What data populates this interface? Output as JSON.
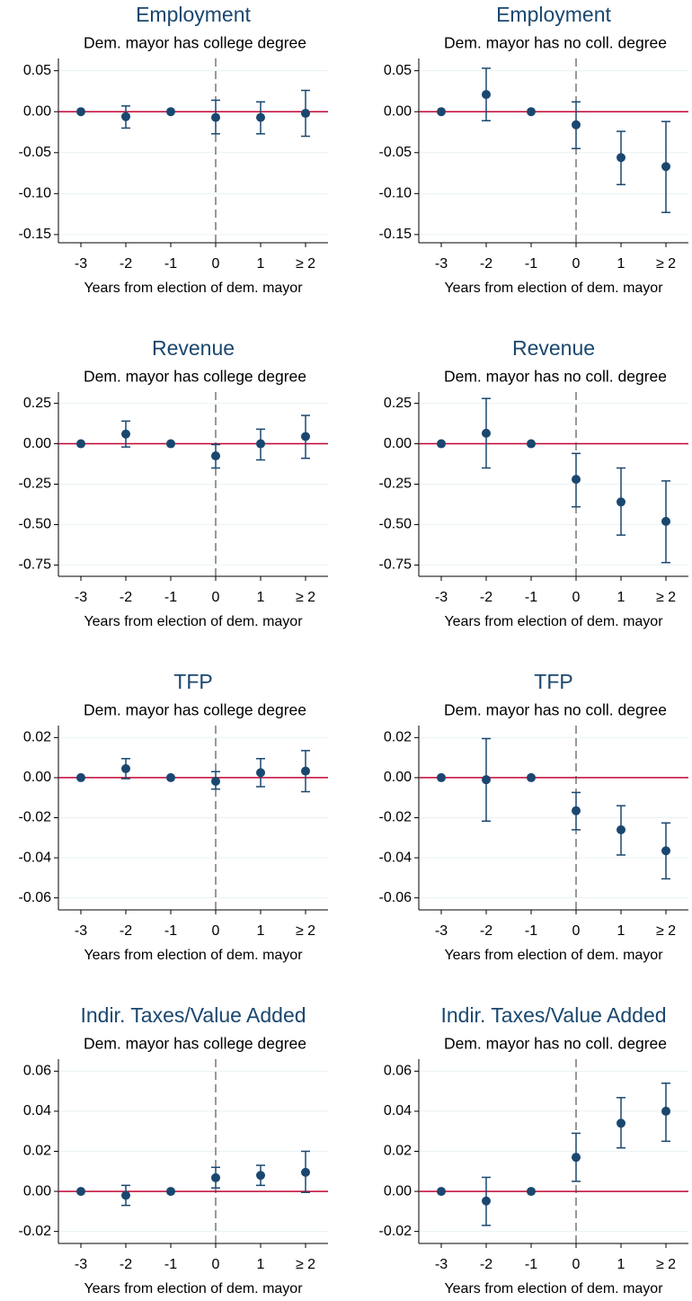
{
  "chart_data": [
    {
      "type": "errorbar",
      "title": "Employment",
      "subtitle": "Dem. mayor has college degree",
      "x_label": "Years from election of dem. mayor",
      "x": [
        -3,
        -2,
        -1,
        0,
        1,
        2
      ],
      "values": [
        0,
        -0.006,
        0,
        -0.007,
        -0.007,
        -0.002
      ],
      "lower": [
        null,
        -0.02,
        null,
        -0.027,
        -0.027,
        -0.03
      ],
      "upper": [
        null,
        0.007,
        null,
        0.014,
        0.012,
        0.026
      ],
      "xlim": [
        -3.5,
        2.5
      ],
      "xticks": [
        -3,
        -2,
        -1,
        0,
        1,
        {
          "value": 2,
          "label": "≥ 2"
        }
      ],
      "ylim": [
        -0.16,
        0.065
      ],
      "yticks": [
        {
          "value": 0.05,
          "label": "0.05"
        },
        {
          "value": 0,
          "label": "0.00"
        },
        {
          "value": -0.05,
          "label": "-0.05"
        },
        {
          "value": -0.1,
          "label": "-0.10"
        },
        {
          "value": -0.15,
          "label": "-0.15"
        }
      ],
      "grid": true,
      "hline": 0,
      "vline": 0,
      "color": "#1a476f",
      "hline_color": "#c10534"
    },
    {
      "type": "errorbar",
      "title": "Employment",
      "subtitle": "Dem. mayor has no coll. degree",
      "x_label": "Years from election of dem. mayor",
      "x": [
        -3,
        -2,
        -1,
        0,
        1,
        2
      ],
      "values": [
        0,
        0.021,
        0,
        -0.016,
        -0.056,
        -0.067
      ],
      "lower": [
        null,
        -0.011,
        null,
        -0.045,
        -0.089,
        -0.123
      ],
      "upper": [
        null,
        0.053,
        null,
        0.012,
        -0.024,
        -0.012
      ],
      "xlim": [
        -3.5,
        2.5
      ],
      "xticks": [
        -3,
        -2,
        -1,
        0,
        1,
        {
          "value": 2,
          "label": "≥ 2"
        }
      ],
      "ylim": [
        -0.16,
        0.065
      ],
      "yticks": [
        {
          "value": 0.05,
          "label": "0.05"
        },
        {
          "value": 0,
          "label": "0.00"
        },
        {
          "value": -0.05,
          "label": "-0.05"
        },
        {
          "value": -0.1,
          "label": "-0.10"
        },
        {
          "value": -0.15,
          "label": "-0.15"
        }
      ],
      "grid": true,
      "hline": 0,
      "vline": 0,
      "color": "#1a476f",
      "hline_color": "#c10534"
    },
    {
      "type": "errorbar",
      "title": "Revenue",
      "subtitle": "Dem. mayor has college degree",
      "x_label": "Years from election of dem. mayor",
      "x": [
        -3,
        -2,
        -1,
        0,
        1,
        2
      ],
      "values": [
        0,
        0.06,
        0,
        -0.075,
        0,
        0.045
      ],
      "lower": [
        null,
        -0.02,
        null,
        -0.15,
        -0.1,
        -0.09
      ],
      "upper": [
        null,
        0.14,
        null,
        -0.005,
        0.09,
        0.175
      ],
      "xlim": [
        -3.5,
        2.5
      ],
      "xticks": [
        -3,
        -2,
        -1,
        0,
        1,
        {
          "value": 2,
          "label": "≥ 2"
        }
      ],
      "ylim": [
        -0.82,
        0.32
      ],
      "yticks": [
        0.25,
        {
          "value": 0,
          "label": "0.00"
        },
        -0.25,
        {
          "value": -0.5,
          "label": "-0.50"
        },
        -0.75
      ],
      "grid": true,
      "hline": 0,
      "vline": 0,
      "color": "#1a476f",
      "hline_color": "#c10534"
    },
    {
      "type": "errorbar",
      "title": "Revenue",
      "subtitle": "Dem. mayor has no coll. degree",
      "x_label": "Years from election of dem. mayor",
      "x": [
        -3,
        -2,
        -1,
        0,
        1,
        2
      ],
      "values": [
        0,
        0.065,
        0,
        -0.22,
        -0.36,
        -0.48
      ],
      "lower": [
        null,
        -0.15,
        null,
        -0.39,
        -0.565,
        -0.735
      ],
      "upper": [
        null,
        0.28,
        null,
        -0.06,
        -0.15,
        -0.23
      ],
      "xlim": [
        -3.5,
        2.5
      ],
      "xticks": [
        -3,
        -2,
        -1,
        0,
        1,
        {
          "value": 2,
          "label": "≥ 2"
        }
      ],
      "ylim": [
        -0.82,
        0.32
      ],
      "yticks": [
        0.25,
        {
          "value": 0,
          "label": "0.00"
        },
        -0.25,
        {
          "value": -0.5,
          "label": "-0.50"
        },
        -0.75
      ],
      "grid": true,
      "hline": 0,
      "vline": 0,
      "color": "#1a476f",
      "hline_color": "#c10534"
    },
    {
      "type": "errorbar",
      "title": "TFP",
      "subtitle": "Dem. mayor has college degree",
      "x_label": "Years from election of dem. mayor",
      "x": [
        -3,
        -2,
        -1,
        0,
        1,
        2
      ],
      "values": [
        0,
        0.0045,
        0,
        -0.0018,
        0.0025,
        0.0033
      ],
      "lower": [
        null,
        -0.0005,
        null,
        -0.0057,
        -0.0045,
        -0.007
      ],
      "upper": [
        null,
        0.0095,
        null,
        0.003,
        0.0095,
        0.0135
      ],
      "xlim": [
        -3.5,
        2.5
      ],
      "xticks": [
        -3,
        -2,
        -1,
        0,
        1,
        {
          "value": 2,
          "label": "≥ 2"
        }
      ],
      "ylim": [
        -0.066,
        0.026
      ],
      "yticks": [
        0.02,
        {
          "value": 0,
          "label": "0.00"
        },
        -0.02,
        -0.04,
        -0.06
      ],
      "grid": true,
      "hline": 0,
      "vline": 0,
      "color": "#1a476f",
      "hline_color": "#c10534"
    },
    {
      "type": "errorbar",
      "title": "TFP",
      "subtitle": "Dem. mayor has no coll. degree",
      "x_label": "Years from election of dem. mayor",
      "x": [
        -3,
        -2,
        -1,
        0,
        1,
        2
      ],
      "values": [
        0,
        -0.001,
        0,
        -0.0165,
        -0.026,
        -0.0365
      ],
      "lower": [
        null,
        -0.0217,
        null,
        -0.026,
        -0.0386,
        -0.0505
      ],
      "upper": [
        null,
        0.0195,
        null,
        -0.0074,
        -0.014,
        -0.0226
      ],
      "xlim": [
        -3.5,
        2.5
      ],
      "xticks": [
        -3,
        -2,
        -1,
        0,
        1,
        {
          "value": 2,
          "label": "≥ 2"
        }
      ],
      "ylim": [
        -0.066,
        0.026
      ],
      "yticks": [
        0.02,
        {
          "value": 0,
          "label": "0.00"
        },
        -0.02,
        -0.04,
        -0.06
      ],
      "grid": true,
      "hline": 0,
      "vline": 0,
      "color": "#1a476f",
      "hline_color": "#c10534"
    },
    {
      "type": "errorbar",
      "title": "Indir. Taxes/Value Added",
      "subtitle": "Dem. mayor has college degree",
      "x_label": "Years from election of dem. mayor",
      "x": [
        -3,
        -2,
        -1,
        0,
        1,
        2
      ],
      "values": [
        0,
        -0.002,
        0,
        0.0068,
        0.008,
        0.0095
      ],
      "lower": [
        null,
        -0.007,
        null,
        0.0017,
        0.003,
        -0.0005
      ],
      "upper": [
        null,
        0.003,
        null,
        0.012,
        0.013,
        0.02
      ],
      "xlim": [
        -3.5,
        2.5
      ],
      "xticks": [
        -3,
        -2,
        -1,
        0,
        1,
        {
          "value": 2,
          "label": "≥ 2"
        }
      ],
      "ylim": [
        -0.026,
        0.066
      ],
      "yticks": [
        0.06,
        0.04,
        0.02,
        {
          "value": 0,
          "label": "0.00"
        },
        -0.02
      ],
      "grid": true,
      "hline": 0,
      "vline": 0,
      "color": "#1a476f",
      "hline_color": "#c10534"
    },
    {
      "type": "errorbar",
      "title": "Indir. Taxes/Value Added",
      "subtitle": "Dem. mayor has no coll. degree",
      "x_label": "Years from election of dem. mayor",
      "x": [
        -3,
        -2,
        -1,
        0,
        1,
        2
      ],
      "values": [
        0,
        -0.0048,
        0,
        0.017,
        0.034,
        0.04
      ],
      "lower": [
        null,
        -0.017,
        null,
        0.005,
        0.0217,
        0.025
      ],
      "upper": [
        null,
        0.007,
        null,
        0.029,
        0.0468,
        0.054
      ],
      "xlim": [
        -3.5,
        2.5
      ],
      "xticks": [
        -3,
        -2,
        -1,
        0,
        1,
        {
          "value": 2,
          "label": "≥ 2"
        }
      ],
      "ylim": [
        -0.026,
        0.066
      ],
      "yticks": [
        0.06,
        0.04,
        0.02,
        {
          "value": 0,
          "label": "0.00"
        },
        -0.02
      ],
      "grid": true,
      "hline": 0,
      "vline": 0,
      "color": "#1a476f",
      "hline_color": "#c10534"
    }
  ]
}
